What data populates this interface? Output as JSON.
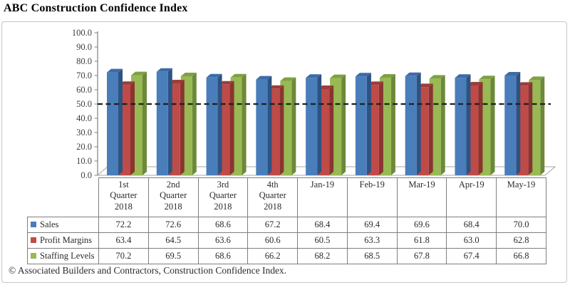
{
  "title": "ABC Construction Confidence Index",
  "footer": "© Associated Builders and Contractors, Construction Confidence Index.",
  "colors": {
    "axis": "#808080",
    "floor_outline": "#a6a6a6",
    "reference_line": "#1f1f1f",
    "tick_label": "#3f3f3f"
  },
  "chart_data": {
    "type": "bar",
    "title": "ABC Construction Confidence Index",
    "style": "3d-clustered-column",
    "categories": [
      "1st Quarter 2018",
      "2nd Quarter 2018",
      "3rd Quarter 2018",
      "4th Quarter 2018",
      "Jan-19",
      "Feb-19",
      "Mar-19",
      "Apr-19",
      "May-19"
    ],
    "series": [
      {
        "name": "Sales",
        "color_front": "#4a7ebb",
        "color_side": "#2e5382",
        "color_top": "#3c6ba8",
        "values": [
          72.2,
          72.6,
          68.6,
          67.2,
          68.4,
          69.4,
          69.6,
          68.4,
          70.0
        ]
      },
      {
        "name": "Profit Margins",
        "color_front": "#be4b48",
        "color_side": "#8a3431",
        "color_top": "#9c3e3b",
        "values": [
          63.4,
          64.5,
          63.6,
          60.6,
          60.5,
          63.3,
          61.8,
          63.0,
          62.8
        ]
      },
      {
        "name": "Staffing Levels",
        "color_front": "#98b954",
        "color_side": "#6c8939",
        "color_top": "#7da143",
        "values": [
          70.2,
          69.5,
          68.6,
          66.2,
          68.2,
          68.5,
          67.8,
          67.4,
          66.8
        ]
      }
    ],
    "ylim": [
      0,
      100
    ],
    "ytick_step": 10,
    "ytick_format_decimals": 1,
    "reference_line": 50.0,
    "grid": false,
    "legend_position": "table-left",
    "data_table_shown": true
  }
}
